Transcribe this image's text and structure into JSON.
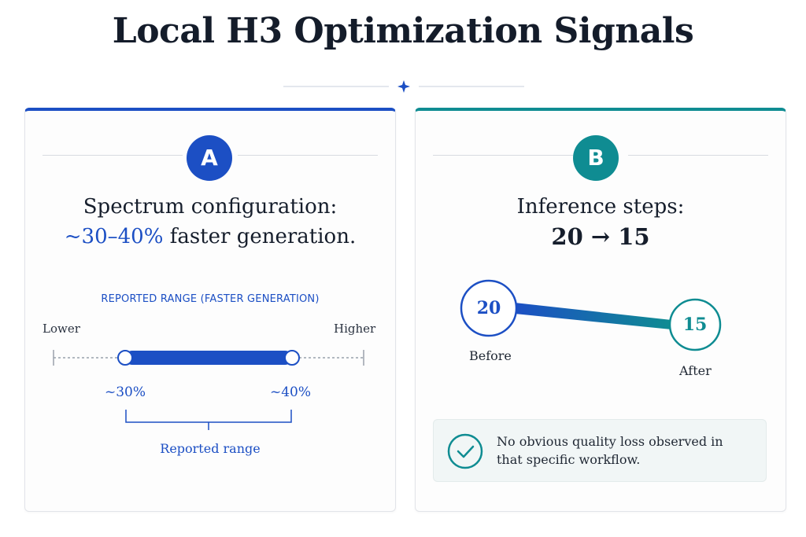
{
  "title": "Local H3 Optimization Signals",
  "colors": {
    "blue": "#1c4fc4",
    "teal": "#0f8c92",
    "text": "#16202e"
  },
  "panel_a": {
    "badge": "A",
    "heading_line1": "Spectrum configuration:",
    "heading_highlight": "~30–40%",
    "heading_rest": " faster generation.",
    "range_caption": "REPORTED RANGE (FASTER GENERATION)",
    "lower_label": "Lower",
    "higher_label": "Higher",
    "range_low": "~30%",
    "range_high": "~40%",
    "range_low_value": 30,
    "range_high_value": 40,
    "range_note": "Reported range"
  },
  "panel_b": {
    "badge": "B",
    "heading_line1": "Inference steps:",
    "heading_line2": "20 → 15",
    "before_value": "20",
    "after_value": "15",
    "before_label": "Before",
    "after_label": "After",
    "note": "No obvious quality loss observed in that specific workflow.",
    "note_icon": "check-circle-icon"
  }
}
